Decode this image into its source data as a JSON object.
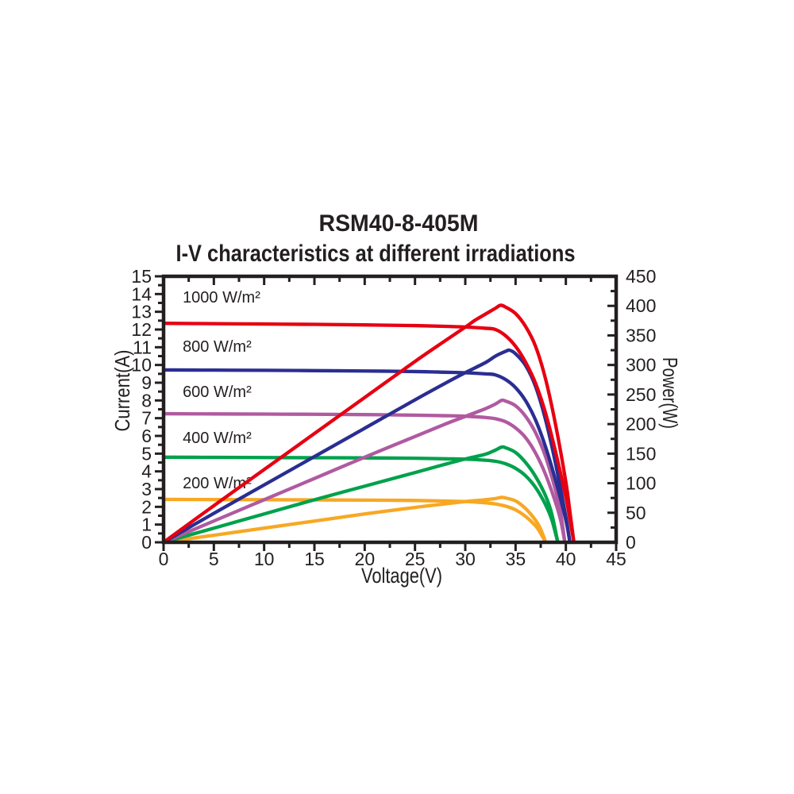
{
  "page": {
    "background": "#ffffff",
    "text_color": "#231f20"
  },
  "chart_data": {
    "type": "line",
    "title": "RSM40-8-405M",
    "subtitle": "I-V characteristics at different irradiations",
    "xlabel": "Voltage(V)",
    "ylabel_left": "Current(A)",
    "ylabel_right": "Power(W)",
    "grid": false,
    "legend_position": "inline-labels",
    "axis_color": "#231f20",
    "x_axis": {
      "min": 0,
      "max": 45,
      "major_step": 5,
      "minor_step": 2.5,
      "ticks": [
        0,
        5,
        10,
        15,
        20,
        25,
        30,
        35,
        40,
        45
      ]
    },
    "y_left_axis": {
      "min": 0,
      "max": 15,
      "major_step": 1,
      "minor_step": 0.5,
      "ticks": [
        0,
        1,
        2,
        3,
        4,
        5,
        6,
        7,
        8,
        9,
        10,
        11,
        12,
        13,
        14,
        15
      ]
    },
    "y_right_axis": {
      "min": 0,
      "max": 450,
      "major_step": 50,
      "minor_step": 25,
      "ticks": [
        0,
        50,
        100,
        150,
        200,
        250,
        300,
        350,
        400,
        450
      ]
    },
    "series": [
      {
        "name": "200 W/m²",
        "irradiance_w_per_m2": 200,
        "color": "#f7a823",
        "isc_a": 2.42,
        "voc_v": 38.0,
        "pmax_w": 76,
        "label_anchor": {
          "v": 1.9,
          "i": 3.04
        },
        "iv_curve": [
          [
            0,
            2.42
          ],
          [
            5,
            2.41
          ],
          [
            10,
            2.4
          ],
          [
            15,
            2.39
          ],
          [
            20,
            2.38
          ],
          [
            25,
            2.36
          ],
          [
            28,
            2.33
          ],
          [
            30,
            2.3
          ],
          [
            31,
            2.27
          ],
          [
            32,
            2.23
          ],
          [
            33,
            2.16
          ],
          [
            34,
            2.04
          ],
          [
            35,
            1.83
          ],
          [
            36,
            1.46
          ],
          [
            37,
            0.92
          ],
          [
            37.5,
            0.5
          ],
          [
            38,
            0
          ]
        ],
        "pv_curve": [
          [
            0,
            0
          ],
          [
            5,
            12
          ],
          [
            10,
            24
          ],
          [
            15,
            36
          ],
          [
            20,
            48
          ],
          [
            25,
            59
          ],
          [
            28,
            65
          ],
          [
            30,
            69
          ],
          [
            32,
            72
          ],
          [
            33,
            74
          ],
          [
            33.6,
            76
          ],
          [
            34,
            75
          ],
          [
            35,
            70
          ],
          [
            36,
            57
          ],
          [
            37,
            37
          ],
          [
            37.5,
            22
          ],
          [
            38,
            0
          ]
        ]
      },
      {
        "name": "400 W/m²",
        "irradiance_w_per_m2": 400,
        "color": "#00a14c",
        "isc_a": 4.8,
        "voc_v": 39.2,
        "pmax_w": 161,
        "label_anchor": {
          "v": 1.9,
          "i": 5.6
        },
        "iv_curve": [
          [
            0,
            4.8
          ],
          [
            5,
            4.79
          ],
          [
            10,
            4.78
          ],
          [
            15,
            4.77
          ],
          [
            20,
            4.76
          ],
          [
            25,
            4.74
          ],
          [
            28,
            4.71
          ],
          [
            30,
            4.69
          ],
          [
            32,
            4.63
          ],
          [
            33,
            4.57
          ],
          [
            34,
            4.43
          ],
          [
            35,
            4.17
          ],
          [
            36,
            3.75
          ],
          [
            37,
            3.08
          ],
          [
            38,
            2.1
          ],
          [
            38.6,
            1.28
          ],
          [
            39.2,
            0
          ]
        ],
        "pv_curve": [
          [
            0,
            0
          ],
          [
            5,
            24
          ],
          [
            10,
            48
          ],
          [
            15,
            72
          ],
          [
            20,
            95
          ],
          [
            25,
            118
          ],
          [
            28,
            132
          ],
          [
            30,
            141
          ],
          [
            32,
            149
          ],
          [
            33,
            156
          ],
          [
            33.6,
            161
          ],
          [
            34,
            160
          ],
          [
            35,
            152
          ],
          [
            36,
            135
          ],
          [
            37,
            111
          ],
          [
            38,
            78
          ],
          [
            38.6,
            48
          ],
          [
            39.2,
            0
          ]
        ]
      },
      {
        "name": "600 W/m²",
        "irradiance_w_per_m2": 600,
        "color": "#b05aa0",
        "isc_a": 7.25,
        "voc_v": 39.9,
        "pmax_w": 240,
        "label_anchor": {
          "v": 1.9,
          "i": 8.19
        },
        "iv_curve": [
          [
            0,
            7.25
          ],
          [
            5,
            7.24
          ],
          [
            10,
            7.23
          ],
          [
            15,
            7.22
          ],
          [
            20,
            7.2
          ],
          [
            25,
            7.17
          ],
          [
            28,
            7.14
          ],
          [
            30,
            7.11
          ],
          [
            32,
            7.04
          ],
          [
            33,
            6.97
          ],
          [
            34,
            6.8
          ],
          [
            35,
            6.45
          ],
          [
            36,
            5.9
          ],
          [
            37,
            5.02
          ],
          [
            38,
            3.8
          ],
          [
            39,
            2.2
          ],
          [
            39.5,
            1.2
          ],
          [
            39.9,
            0
          ]
        ],
        "pv_curve": [
          [
            0,
            0
          ],
          [
            5,
            36
          ],
          [
            10,
            72
          ],
          [
            15,
            108
          ],
          [
            20,
            144
          ],
          [
            25,
            179
          ],
          [
            28,
            200
          ],
          [
            30,
            213
          ],
          [
            32,
            226
          ],
          [
            33,
            234
          ],
          [
            33.6,
            240
          ],
          [
            34,
            239
          ],
          [
            35,
            231
          ],
          [
            36,
            213
          ],
          [
            37,
            185
          ],
          [
            38,
            144
          ],
          [
            39,
            86
          ],
          [
            39.5,
            48
          ],
          [
            39.9,
            0
          ]
        ]
      },
      {
        "name": "800 W/m²",
        "irradiance_w_per_m2": 800,
        "color": "#2a2e92",
        "isc_a": 9.72,
        "voc_v": 40.4,
        "pmax_w": 325,
        "label_anchor": {
          "v": 1.9,
          "i": 10.75
        },
        "iv_curve": [
          [
            0,
            9.72
          ],
          [
            5,
            9.71
          ],
          [
            10,
            9.7
          ],
          [
            15,
            9.68
          ],
          [
            20,
            9.66
          ],
          [
            25,
            9.63
          ],
          [
            28,
            9.59
          ],
          [
            30,
            9.56
          ],
          [
            32,
            9.5
          ],
          [
            33,
            9.44
          ],
          [
            34,
            9.18
          ],
          [
            35,
            8.72
          ],
          [
            36,
            7.98
          ],
          [
            37,
            6.88
          ],
          [
            38,
            5.35
          ],
          [
            39,
            3.45
          ],
          [
            40,
            1.25
          ],
          [
            40.4,
            0
          ]
        ],
        "pv_curve": [
          [
            0,
            0
          ],
          [
            5,
            49
          ],
          [
            10,
            97
          ],
          [
            15,
            145
          ],
          [
            20,
            193
          ],
          [
            25,
            241
          ],
          [
            28,
            269
          ],
          [
            30,
            287
          ],
          [
            32,
            304
          ],
          [
            33,
            315
          ],
          [
            34,
            323
          ],
          [
            34.4,
            325
          ],
          [
            35,
            319
          ],
          [
            36,
            299
          ],
          [
            37,
            263
          ],
          [
            38,
            206
          ],
          [
            39,
            131
          ],
          [
            40,
            43
          ],
          [
            40.4,
            0
          ]
        ]
      },
      {
        "name": "1000 W/m²",
        "irradiance_w_per_m2": 1000,
        "color": "#e60012",
        "isc_a": 12.35,
        "voc_v": 40.8,
        "pmax_w": 401,
        "label_anchor": {
          "v": 1.9,
          "i": 13.52
        },
        "iv_curve": [
          [
            0,
            12.35
          ],
          [
            5,
            12.33
          ],
          [
            10,
            12.31
          ],
          [
            15,
            12.29
          ],
          [
            20,
            12.26
          ],
          [
            25,
            12.22
          ],
          [
            28,
            12.18
          ],
          [
            30,
            12.14
          ],
          [
            32,
            12.07
          ],
          [
            33,
            12.0
          ],
          [
            34,
            11.65
          ],
          [
            35,
            11.05
          ],
          [
            36,
            10.15
          ],
          [
            37,
            8.95
          ],
          [
            38,
            7.25
          ],
          [
            39,
            5.05
          ],
          [
            40,
            2.55
          ],
          [
            40.4,
            1.3
          ],
          [
            40.8,
            0
          ]
        ],
        "pv_curve": [
          [
            0,
            0
          ],
          [
            5,
            62
          ],
          [
            10,
            123
          ],
          [
            15,
            184
          ],
          [
            20,
            245
          ],
          [
            25,
            306
          ],
          [
            28,
            341
          ],
          [
            30,
            364
          ],
          [
            31,
            376
          ],
          [
            32,
            386
          ],
          [
            33,
            396
          ],
          [
            33.5,
            401
          ],
          [
            34,
            398
          ],
          [
            35,
            387
          ],
          [
            36,
            365
          ],
          [
            37,
            331
          ],
          [
            38,
            275
          ],
          [
            39,
            197
          ],
          [
            40,
            102
          ],
          [
            40.4,
            52
          ],
          [
            40.8,
            0
          ]
        ]
      }
    ]
  }
}
